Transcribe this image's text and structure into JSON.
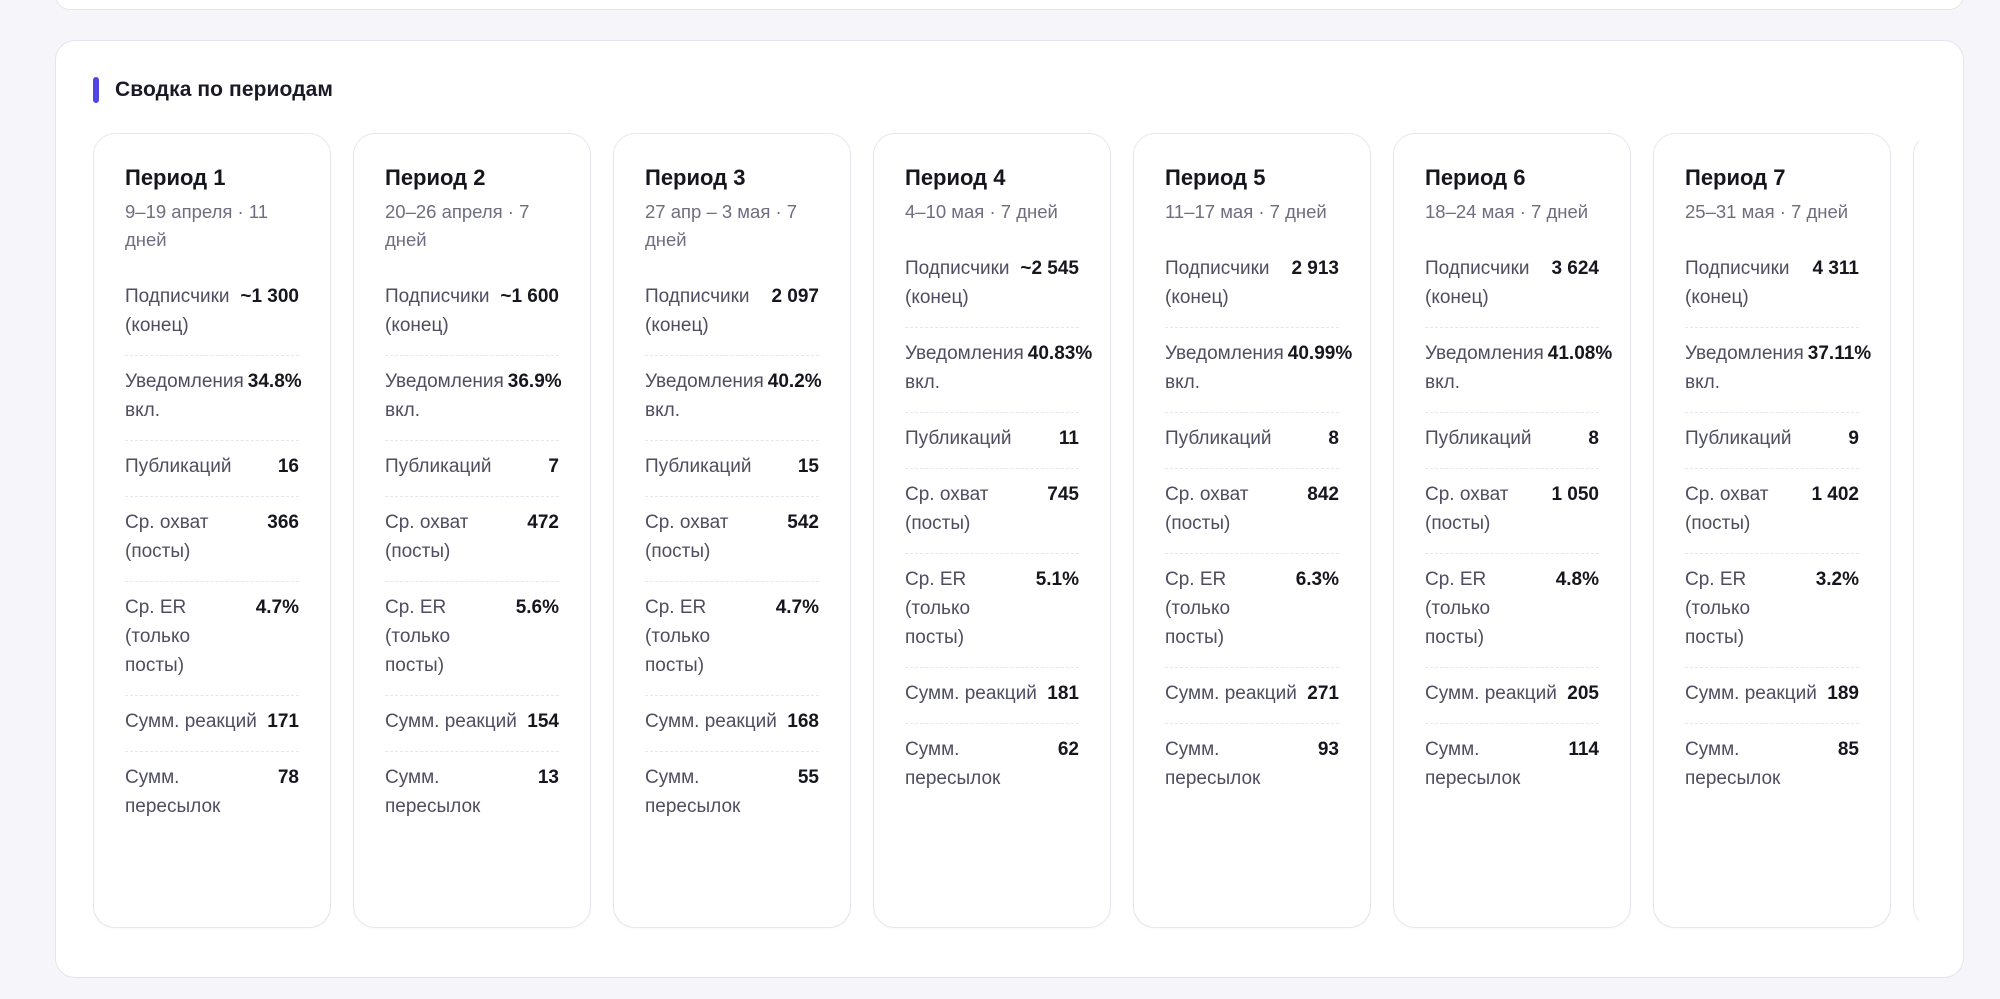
{
  "colors": {
    "accent": "#4f46e5",
    "background": "#f5f5fa",
    "card": "#ffffff"
  },
  "section": {
    "title": "Сводка по периодам"
  },
  "periods": [
    {
      "title": "Период 1",
      "dates": "9–19 апреля · 11 дней",
      "metrics": [
        {
          "label": "Подписчики (конец)",
          "value": "~1 300"
        },
        {
          "label": "Уведомления вкл.",
          "value": "34.8%"
        },
        {
          "label": "Публикаций",
          "value": "16"
        },
        {
          "label": "Ср. охват (посты)",
          "value": "366"
        },
        {
          "label": "Ср. ER (только посты)",
          "value": "4.7%"
        },
        {
          "label": "Сумм. реакций",
          "value": "171"
        },
        {
          "label": "Сумм. пересылок",
          "value": "78"
        }
      ]
    },
    {
      "title": "Период 2",
      "dates": "20–26 апреля · 7 дней",
      "metrics": [
        {
          "label": "Подписчики (конец)",
          "value": "~1 600"
        },
        {
          "label": "Уведомления вкл.",
          "value": "36.9%"
        },
        {
          "label": "Публикаций",
          "value": "7"
        },
        {
          "label": "Ср. охват (посты)",
          "value": "472"
        },
        {
          "label": "Ср. ER (только посты)",
          "value": "5.6%"
        },
        {
          "label": "Сумм. реакций",
          "value": "154"
        },
        {
          "label": "Сумм. пересылок",
          "value": "13"
        }
      ]
    },
    {
      "title": "Период 3",
      "dates": "27 апр – 3 мая · 7 дней",
      "metrics": [
        {
          "label": "Подписчики (конец)",
          "value": "2 097"
        },
        {
          "label": "Уведомления вкл.",
          "value": "40.2%"
        },
        {
          "label": "Публикаций",
          "value": "15"
        },
        {
          "label": "Ср. охват (посты)",
          "value": "542"
        },
        {
          "label": "Ср. ER (только посты)",
          "value": "4.7%"
        },
        {
          "label": "Сумм. реакций",
          "value": "168"
        },
        {
          "label": "Сумм. пересылок",
          "value": "55"
        }
      ]
    },
    {
      "title": "Период 4",
      "dates": "4–10 мая · 7 дней",
      "metrics": [
        {
          "label": "Подписчики (конец)",
          "value": "~2 545"
        },
        {
          "label": "Уведомления вкл.",
          "value": "40.83%"
        },
        {
          "label": "Публикаций",
          "value": "11"
        },
        {
          "label": "Ср. охват (посты)",
          "value": "745"
        },
        {
          "label": "Ср. ER (только посты)",
          "value": "5.1%"
        },
        {
          "label": "Сумм. реакций",
          "value": "181"
        },
        {
          "label": "Сумм. пересылок",
          "value": "62"
        }
      ]
    },
    {
      "title": "Период 5",
      "dates": "11–17 мая · 7 дней",
      "metrics": [
        {
          "label": "Подписчики (конец)",
          "value": "2 913"
        },
        {
          "label": "Уведомления вкл.",
          "value": "40.99%"
        },
        {
          "label": "Публикаций",
          "value": "8"
        },
        {
          "label": "Ср. охват (посты)",
          "value": "842"
        },
        {
          "label": "Ср. ER (только посты)",
          "value": "6.3%"
        },
        {
          "label": "Сумм. реакций",
          "value": "271"
        },
        {
          "label": "Сумм. пересылок",
          "value": "93"
        }
      ]
    },
    {
      "title": "Период 6",
      "dates": "18–24 мая · 7 дней",
      "metrics": [
        {
          "label": "Подписчики (конец)",
          "value": "3 624"
        },
        {
          "label": "Уведомления вкл.",
          "value": "41.08%"
        },
        {
          "label": "Публикаций",
          "value": "8"
        },
        {
          "label": "Ср. охват (посты)",
          "value": "1 050"
        },
        {
          "label": "Ср. ER (только посты)",
          "value": "4.8%"
        },
        {
          "label": "Сумм. реакций",
          "value": "205"
        },
        {
          "label": "Сумм. пересылок",
          "value": "114"
        }
      ]
    },
    {
      "title": "Период 7",
      "dates": "25–31 мая · 7 дней",
      "metrics": [
        {
          "label": "Подписчики (конец)",
          "value": "4 311"
        },
        {
          "label": "Уведомления вкл.",
          "value": "37.11%"
        },
        {
          "label": "Публикаций",
          "value": "9"
        },
        {
          "label": "Ср. охват (посты)",
          "value": "1 402"
        },
        {
          "label": "Ср. ER (только посты)",
          "value": "3.2%"
        },
        {
          "label": "Сумм. реакций",
          "value": "189"
        },
        {
          "label": "Сумм. пересылок",
          "value": "85"
        }
      ]
    }
  ]
}
